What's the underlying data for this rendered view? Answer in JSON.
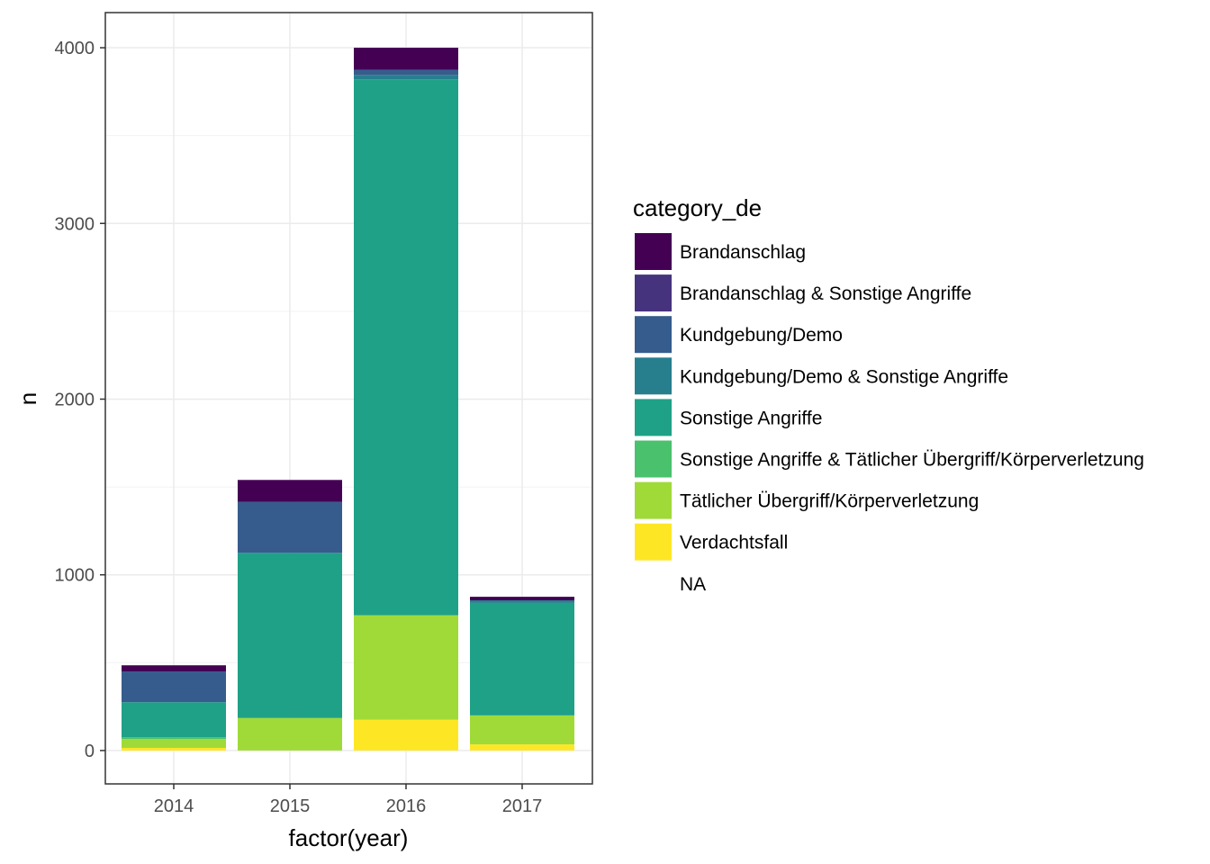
{
  "chart_data": {
    "type": "bar",
    "stacked": true,
    "xlabel": "factor(year)",
    "ylabel": "n",
    "categories": [
      "2014",
      "2015",
      "2016",
      "2017"
    ],
    "ylim": [
      -190,
      4200
    ],
    "yticks": [
      0,
      1000,
      2000,
      3000,
      4000
    ],
    "ytick_labels": [
      "0",
      "1000",
      "2000",
      "3000",
      "4000"
    ],
    "grid": true,
    "legend": {
      "title": "category_de",
      "position": "right"
    },
    "series": [
      {
        "name": "Brandanschlag",
        "color": "#440154",
        "values": [
          35,
          125,
          125,
          20
        ]
      },
      {
        "name": "Brandanschlag & Sonstige Angriffe",
        "color": "#46337E",
        "values": [
          0,
          0,
          0,
          0
        ]
      },
      {
        "name": "Kundgebung/Demo",
        "color": "#365C8D",
        "values": [
          175,
          290,
          30,
          0
        ]
      },
      {
        "name": "Kundgebung/Demo & Sonstige Angriffe",
        "color": "#277F8E",
        "values": [
          0,
          0,
          25,
          15
        ]
      },
      {
        "name": "Sonstige Angriffe",
        "color": "#1FA187",
        "values": [
          200,
          940,
          3050,
          640
        ]
      },
      {
        "name": "Sonstige Angriffe & Tätlicher Übergriff/Körperverletzung",
        "color": "#4AC16D",
        "values": [
          10,
          0,
          0,
          0
        ]
      },
      {
        "name": "Tätlicher Übergriff/Körperverletzung",
        "color": "#A0DA39",
        "values": [
          50,
          185,
          595,
          165
        ]
      },
      {
        "name": "Verdachtsfall",
        "color": "#FDE725",
        "values": [
          15,
          0,
          175,
          35
        ]
      },
      {
        "name": "NA",
        "color": "#ffffff",
        "values": [
          0,
          0,
          0,
          0
        ]
      }
    ]
  }
}
